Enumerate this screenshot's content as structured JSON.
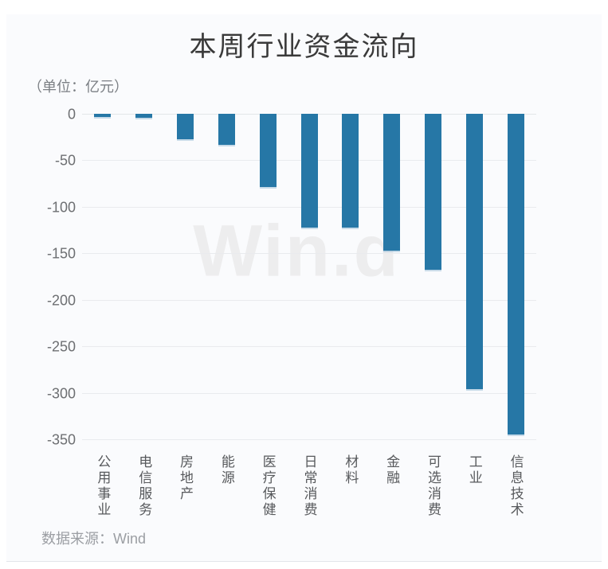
{
  "header": {
    "title": "本周行业资金流向",
    "unit_label": "（单位：亿元）"
  },
  "watermark": {
    "text": "Win.d"
  },
  "footer": {
    "source_label": "数据来源：Wind"
  },
  "colors": {
    "bar": "#2677a6",
    "grid": "#e9ebee",
    "card_background": "#fafbfd",
    "page_background": "#ffffff",
    "title_text": "#3a3a3a",
    "axis_tick_text": "#6d6f72",
    "category_text": "#57595c",
    "unit_text": "#7b7f84",
    "source_text": "#9b9ea3",
    "watermark_text": "#ededee"
  },
  "chart_data": {
    "type": "bar",
    "title": "本周行业资金流向",
    "unit": "亿元",
    "categories": [
      "公用事业",
      "电信服务",
      "房地产",
      "能源",
      "医疗保健",
      "日常消费",
      "材料",
      "金融",
      "可选消费",
      "工业",
      "信息技术"
    ],
    "values": [
      -3,
      -4,
      -27,
      -33,
      -79,
      -122,
      -122,
      -147,
      -168,
      -296,
      -345
    ],
    "xlabel": "",
    "ylabel": "",
    "ylim": [
      -350,
      0
    ],
    "yticks": [
      0,
      -50,
      -100,
      -150,
      -200,
      -250,
      -300,
      -350
    ],
    "grid": true,
    "legend": false,
    "bar_orientation": "vertical",
    "category_label_orientation": "vertical",
    "source": "Wind"
  }
}
